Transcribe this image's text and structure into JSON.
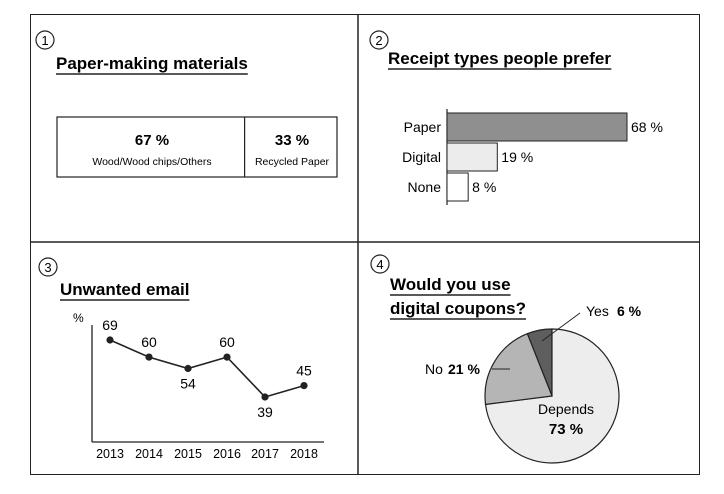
{
  "chart_data": [
    {
      "type": "bar",
      "panel_number": "1",
      "title": "Paper-making materials",
      "orientation": "stacked-horizontal",
      "segments": [
        {
          "percent_label": "67 %",
          "label": "Wood/Wood chips/Others",
          "value": 67
        },
        {
          "percent_label": "33 %",
          "label": "Recycled Paper",
          "value": 33
        }
      ]
    },
    {
      "type": "bar",
      "panel_number": "2",
      "title": "Receipt types people prefer",
      "orientation": "horizontal",
      "categories": [
        "Paper",
        "Digital",
        "None"
      ],
      "values": [
        68,
        19,
        8
      ],
      "value_labels": [
        "68 %",
        "19 %",
        "8 %"
      ],
      "colors": [
        "#8f8f8f",
        "#ececec",
        "#ffffff"
      ]
    },
    {
      "type": "line",
      "panel_number": "3",
      "title": "Unwanted email",
      "ylabel": "%",
      "x": [
        "2013",
        "2014",
        "2015",
        "2016",
        "2017",
        "2018"
      ],
      "y": [
        69,
        60,
        54,
        60,
        39,
        45
      ],
      "ylim": [
        20,
        80
      ],
      "data_labels": [
        "69",
        "60",
        "54",
        "60",
        "39",
        "45"
      ]
    },
    {
      "type": "pie",
      "panel_number": "4",
      "title": "Would you use digital coupons?",
      "title_lines": [
        "Would you use",
        "digital coupons?"
      ],
      "slices": [
        {
          "label": "Yes",
          "percent_label": "6 %",
          "value": 6,
          "color": "#5e5e5e"
        },
        {
          "label": "Depends",
          "percent_label": "73 %",
          "value": 73,
          "color": "#ededed"
        },
        {
          "label": "No",
          "percent_label": "21 %",
          "value": 21,
          "color": "#b5b5b5"
        }
      ]
    }
  ]
}
